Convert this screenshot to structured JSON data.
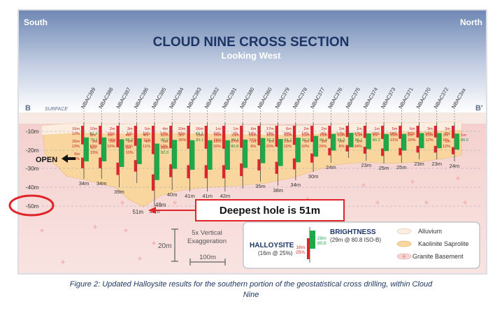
{
  "header": {
    "south": "South",
    "north": "North",
    "title": "CLOUD NINE CROSS SECTION",
    "subtitle": "Looking West"
  },
  "section": {
    "b_left": "B",
    "surface": "SURFACE",
    "b_right": "B'",
    "depth_labels": [
      "-10m",
      "-20m",
      "-30m",
      "-40m",
      "-50m"
    ],
    "open_label": "OPEN"
  },
  "holes": [
    {
      "name": "NBAC389",
      "depth": "34m",
      "labels": [
        "16m",
        "12%",
        "8m",
        "79.1",
        "20m",
        "13%",
        "1m",
        "15%",
        "6m",
        "8%"
      ]
    },
    {
      "name": "NBAC388",
      "depth": "34m",
      "labels": [
        "10m",
        "81.3",
        "2m",
        "10%",
        "1m",
        "10%"
      ]
    },
    {
      "name": "NBAC387",
      "depth": "39m",
      "labels": [
        "2m",
        "13%",
        "4m",
        "85.0",
        "2m",
        "10%",
        "3m",
        "10%"
      ]
    },
    {
      "name": "NBAC386",
      "depth": "",
      "labels": [
        "3m",
        "5%",
        "4m",
        "11%",
        "1m",
        "15%"
      ]
    },
    {
      "name": "NBAC385",
      "depth": "51m",
      "labels": [
        "5m",
        "19%",
        "22m",
        "82.2",
        "4m",
        "11%",
        "28m",
        "82.0"
      ]
    },
    {
      "name": "NBAC384",
      "depth": "40m",
      "labels": [
        "4m",
        "17%",
        "3m",
        "20%",
        "1m",
        "12%"
      ]
    },
    {
      "name": "NBAC383",
      "depth": "41m",
      "labels": [
        "10m",
        "20%",
        "15m",
        "82.1"
      ]
    },
    {
      "name": "NBAC382",
      "depth": "41m",
      "labels": [
        "16m",
        "83.3",
        "16m",
        "26%"
      ]
    },
    {
      "name": "NBAC381",
      "depth": "42m",
      "labels": [
        "1m",
        "10%",
        "29m",
        "80.6",
        "12m",
        "16%"
      ]
    },
    {
      "name": "NBAC380",
      "depth": "",
      "labels": [
        "1m",
        "7%",
        "16m",
        "27%",
        "27m",
        "80.8"
      ]
    },
    {
      "name": "NBAC360",
      "depth": "35m",
      "labels": [
        "6m",
        "19%",
        "22m",
        "82.3",
        "1m",
        "9%"
      ]
    },
    {
      "name": "NBAC379",
      "depth": "38m",
      "labels": [
        "17m",
        "13%",
        "22m",
        "81.1",
        "1m",
        "20%"
      ]
    },
    {
      "name": "NBAC378",
      "depth": "34m",
      "labels": [
        "6m",
        "24%",
        "22m",
        "82.3",
        "13m",
        "15%"
      ]
    },
    {
      "name": "NBAC377",
      "depth": "30m",
      "labels": [
        "2m",
        "17%",
        "15m",
        "82.4",
        "1m",
        "10%"
      ]
    },
    {
      "name": "NBAC376",
      "depth": "24m",
      "labels": [
        "2m",
        "6%",
        "10m",
        "82.3",
        "3m",
        "29%"
      ]
    },
    {
      "name": "NBAC375",
      "depth": "",
      "labels": [
        "1m",
        "17%",
        "13m",
        "83.1",
        "2m",
        "8%"
      ]
    },
    {
      "name": "NBAC374",
      "depth": "23m",
      "labels": [
        "1m",
        "27%",
        "1m",
        "80.2",
        "1m",
        "34%"
      ]
    },
    {
      "name": "NBAC373",
      "depth": "25m",
      "labels": [
        "1m",
        "18%",
        "15m",
        "21%"
      ]
    },
    {
      "name": "NBAC371",
      "depth": "25m",
      "labels": [
        "5m",
        "18%",
        "2m",
        "20%"
      ]
    },
    {
      "name": "NBAC370",
      "depth": "23m",
      "labels": [
        "6m",
        "20%",
        "10m",
        "12%"
      ]
    },
    {
      "name": "NBAC372",
      "depth": "23m",
      "labels": [
        "3m",
        "14%",
        "2m",
        "6%"
      ]
    },
    {
      "name": "NBAC3xx",
      "depth": "24m",
      "labels": [
        "3m",
        "9%",
        "1m",
        "80.0",
        "1m",
        "12%"
      ]
    }
  ],
  "callout": {
    "text": "Deepest hole is 51m",
    "depth": "51m",
    "extra_depth": "48m"
  },
  "scale": {
    "vertical_bar": "20m",
    "exaggeration_line1": "5x Vertical",
    "exaggeration_line2": "Exaggeration",
    "horizontal_bar": "100m"
  },
  "legend": {
    "halloysite_title": "HALLOYSITE",
    "halloysite_sub": "(16m @ 25%)",
    "halloysite_v1": "16m",
    "halloysite_v2": "25%",
    "brightness_title": "BRIGHTNESS",
    "brightness_sub": "(29m @ 80.8 ISO-B)",
    "brightness_v1": "29m",
    "brightness_v2": "80.8",
    "alluvium": "Alluvium",
    "saprolite": "Kaolinite Saprolite",
    "granite": "Granite Basement"
  },
  "colors": {
    "sky_top": "#6f88b4",
    "sky_bottom": "#ffffff",
    "alluvium": "#fbeee0",
    "saprolite": "#f8d69e",
    "granite": "#f6d6d3",
    "halloysite_red": "#e0242b",
    "brightness_green": "#1fa84a",
    "callout_red": "#e0242b"
  },
  "caption": {
    "line1": "Figure 2:  Updated Halloysite results for the southern portion of the geostatistical cross drilling, within Cloud",
    "line2": "Nine"
  }
}
